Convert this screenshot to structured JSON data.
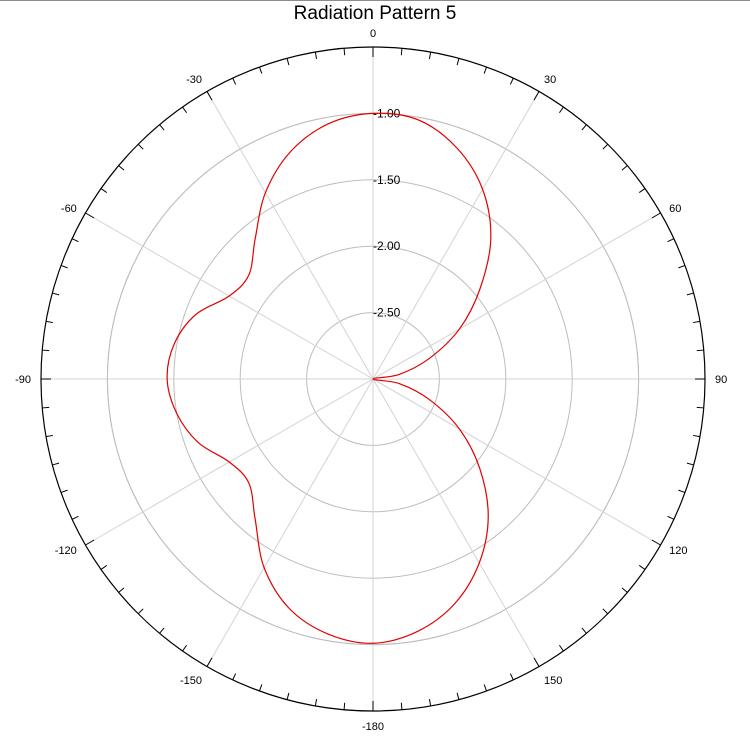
{
  "chart_data": {
    "type": "polar-line",
    "title": "Radiation Pattern 5",
    "angle_direction": "clockwise",
    "zero_location": "top",
    "angle_tick_labels": [
      {
        "angle": 0,
        "label": "0"
      },
      {
        "angle": 30,
        "label": "30"
      },
      {
        "angle": 60,
        "label": "60"
      },
      {
        "angle": 90,
        "label": "90"
      },
      {
        "angle": 120,
        "label": "120"
      },
      {
        "angle": 150,
        "label": "150"
      },
      {
        "angle": 180,
        "label": "-180"
      },
      {
        "angle": -150,
        "label": "-150"
      },
      {
        "angle": -120,
        "label": "-120"
      },
      {
        "angle": -90,
        "label": "-90"
      },
      {
        "angle": -60,
        "label": "-60"
      },
      {
        "angle": -30,
        "label": "-30"
      }
    ],
    "radial_range": [
      -3.0,
      -0.5
    ],
    "radial_ticks": [
      {
        "value": -2.5,
        "label": "-2.50"
      },
      {
        "value": -2.0,
        "label": "-2.00"
      },
      {
        "value": -1.5,
        "label": "-1.50"
      },
      {
        "value": -1.0,
        "label": "-1.00"
      }
    ],
    "grid": true,
    "series": [
      {
        "color": "#e00000",
        "points": [
          {
            "angle": 0,
            "r": -1.0
          },
          {
            "angle": 10,
            "r": -1.02
          },
          {
            "angle": 20,
            "r": -1.15
          },
          {
            "angle": 30,
            "r": -1.35
          },
          {
            "angle": 40,
            "r": -1.62
          },
          {
            "angle": 50,
            "r": -1.95
          },
          {
            "angle": 60,
            "r": -2.25
          },
          {
            "angle": 70,
            "r": -2.55
          },
          {
            "angle": 80,
            "r": -2.8
          },
          {
            "angle": 90,
            "r": -3.0
          },
          {
            "angle": 100,
            "r": -2.8
          },
          {
            "angle": 110,
            "r": -2.55
          },
          {
            "angle": 120,
            "r": -2.25
          },
          {
            "angle": 130,
            "r": -1.95
          },
          {
            "angle": 140,
            "r": -1.65
          },
          {
            "angle": 150,
            "r": -1.4
          },
          {
            "angle": 160,
            "r": -1.2
          },
          {
            "angle": 170,
            "r": -1.07
          },
          {
            "angle": 180,
            "r": -1.01
          },
          {
            "angle": -170,
            "r": -1.05
          },
          {
            "angle": -160,
            "r": -1.16
          },
          {
            "angle": -150,
            "r": -1.36
          },
          {
            "angle": -140,
            "r": -1.62
          },
          {
            "angle": -130,
            "r": -1.78
          },
          {
            "angle": -120,
            "r": -1.75
          },
          {
            "angle": -110,
            "r": -1.6
          },
          {
            "angle": -100,
            "r": -1.5
          },
          {
            "angle": -90,
            "r": -1.45
          },
          {
            "angle": -80,
            "r": -1.48
          },
          {
            "angle": -70,
            "r": -1.58
          },
          {
            "angle": -60,
            "r": -1.75
          },
          {
            "angle": -50,
            "r": -1.78
          },
          {
            "angle": -40,
            "r": -1.62
          },
          {
            "angle": -30,
            "r": -1.38
          },
          {
            "angle": -20,
            "r": -1.18
          },
          {
            "angle": -10,
            "r": -1.05
          },
          {
            "angle": 0,
            "r": -1.0
          }
        ]
      }
    ]
  }
}
